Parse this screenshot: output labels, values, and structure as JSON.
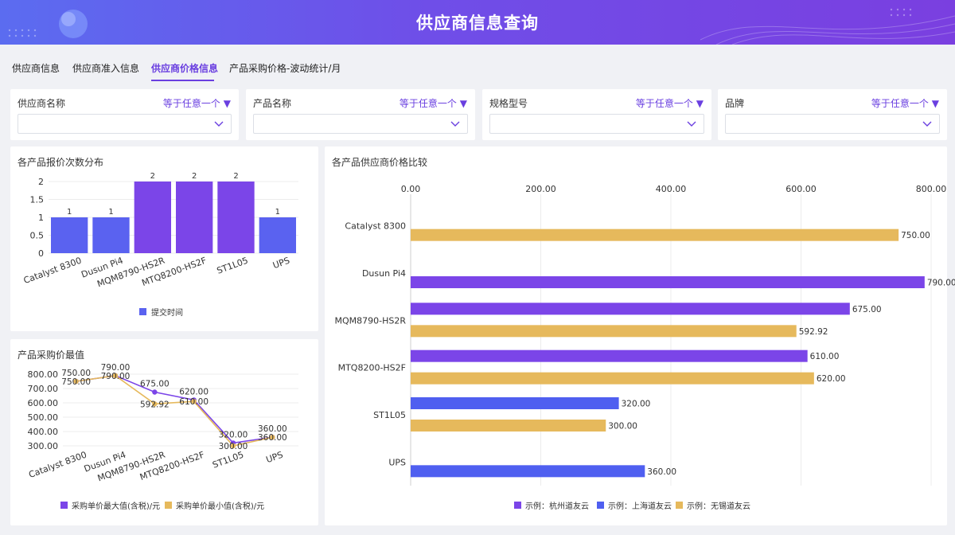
{
  "header": {
    "title": "供应商信息查询"
  },
  "tabs": [
    {
      "label": "供应商信息"
    },
    {
      "label": "供应商准入信息"
    },
    {
      "label": "供应商价格信息"
    },
    {
      "label": "产品采购价格-波动统计/月"
    }
  ],
  "active_tab": 2,
  "filters": [
    {
      "label": "供应商名称",
      "operator": "等于任意一个",
      "value": ""
    },
    {
      "label": "产品名称",
      "operator": "等于任意一个",
      "value": ""
    },
    {
      "label": "规格型号",
      "operator": "等于任意一个",
      "value": ""
    },
    {
      "label": "品牌",
      "operator": "等于任意一个",
      "value": ""
    }
  ],
  "colors": {
    "accent": "#6a3fe0",
    "purple": "#7b45e8",
    "blue": "#4f5ff0",
    "gold": "#e6b95c",
    "bar1": "#5a62f0"
  },
  "chart_data": [
    {
      "type": "bar",
      "title": "各产品报价次数分布",
      "categories": [
        "Catalyst 8300",
        "Dusun Pi4",
        "MQM8790-HS2R",
        "MTQ8200-HS2F",
        "ST1L05",
        "UPS"
      ],
      "series": [
        {
          "name": "提交时间",
          "values": [
            1,
            1,
            2,
            2,
            2,
            1
          ]
        }
      ],
      "yticks": [
        "0",
        "0.5",
        "1",
        "1.5",
        "2"
      ],
      "ylim": [
        0,
        2
      ],
      "legend": "bottom"
    },
    {
      "type": "line",
      "title": "产品采购价最值",
      "categories": [
        "Catalyst 8300",
        "Dusun Pi4",
        "MQM8790-HS2R",
        "MTQ8200-HS2F",
        "ST1L05",
        "UPS"
      ],
      "series": [
        {
          "name": "采购单价最大值(含税)/元",
          "values": [
            750,
            790,
            675,
            620,
            320,
            360
          ],
          "labels": [
            "750.00",
            "790.00",
            "675.00",
            "620.00",
            "320.00",
            "360.00"
          ]
        },
        {
          "name": "采购单价最小值(含税)/元",
          "values": [
            750,
            790,
            592.92,
            610,
            300,
            360
          ],
          "labels": [
            "750.00",
            "790.00",
            "592.92",
            "610.00",
            "300.00",
            "360.00"
          ]
        }
      ],
      "yticks": [
        "300.00",
        "400.00",
        "500.00",
        "600.00",
        "700.00",
        "800.00"
      ],
      "ylim": [
        300,
        800
      ],
      "legend": "bottom"
    },
    {
      "type": "bar",
      "orientation": "horizontal",
      "title": "各产品供应商价格比较",
      "categories": [
        "Catalyst 8300",
        "Dusun Pi4",
        "MQM8790-HS2R",
        "MTQ8200-HS2F",
        "ST1L05",
        "UPS"
      ],
      "series": [
        {
          "name": "示例：杭州道友云",
          "values": [
            null,
            790,
            675,
            610,
            null,
            null
          ]
        },
        {
          "name": "示例：上海道友云",
          "values": [
            null,
            null,
            null,
            null,
            320,
            360
          ]
        },
        {
          "name": "示例：无锡道友云",
          "values": [
            750,
            null,
            592.92,
            620,
            300,
            null
          ]
        }
      ],
      "bars": [
        {
          "cat": 0,
          "series": 2,
          "value": 750,
          "label": "750.00"
        },
        {
          "cat": 1,
          "series": 0,
          "value": 790,
          "label": "790.00"
        },
        {
          "cat": 2,
          "series": 0,
          "value": 675,
          "label": "675.00"
        },
        {
          "cat": 2,
          "series": 2,
          "value": 592.92,
          "label": "592.92"
        },
        {
          "cat": 3,
          "series": 0,
          "value": 610,
          "label": "610.00"
        },
        {
          "cat": 3,
          "series": 2,
          "value": 620,
          "label": "620.00"
        },
        {
          "cat": 4,
          "series": 1,
          "value": 320,
          "label": "320.00"
        },
        {
          "cat": 4,
          "series": 2,
          "value": 300,
          "label": "300.00"
        },
        {
          "cat": 5,
          "series": 1,
          "value": 360,
          "label": "360.00"
        }
      ],
      "xticks": [
        "0.00",
        "200.00",
        "400.00",
        "600.00",
        "800.00"
      ],
      "xlim": [
        0,
        800
      ],
      "xaxis_position": "top",
      "legend": "bottom"
    }
  ]
}
